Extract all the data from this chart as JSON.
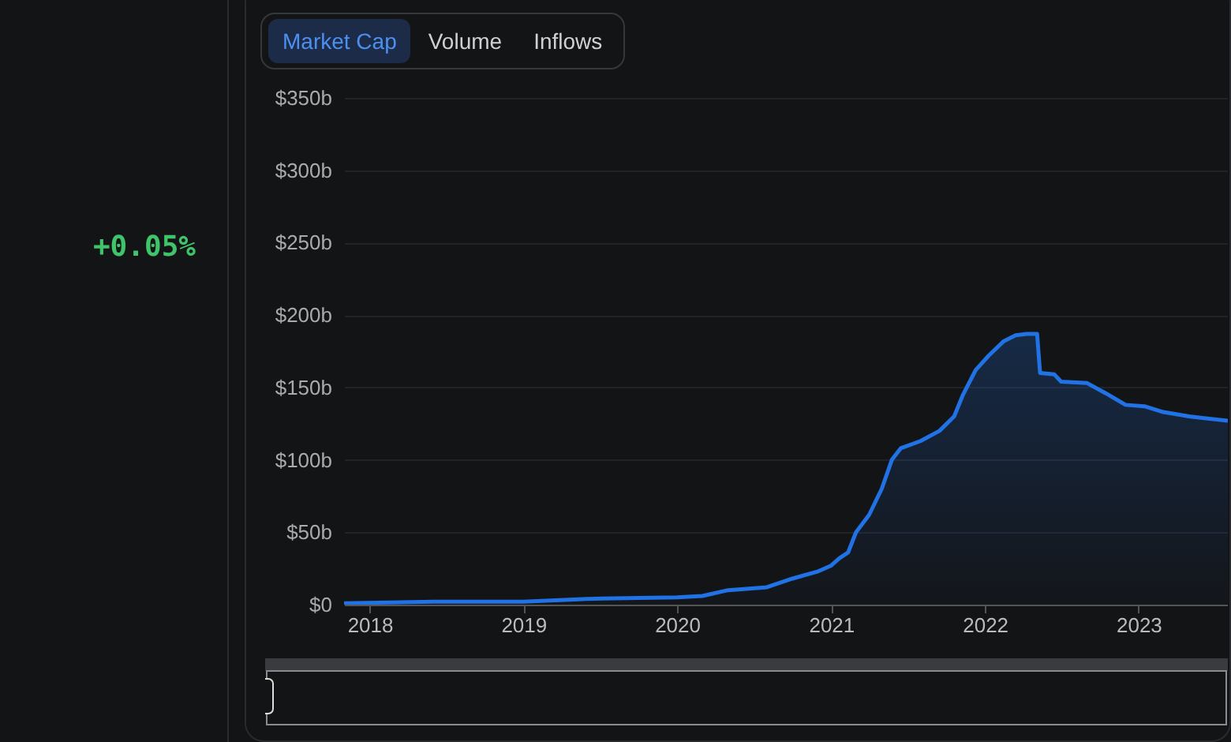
{
  "chart_data": {
    "type": "area",
    "annotations": [
      "+0.05%",
      "Market Cap",
      "Volume",
      "Inflows"
    ],
    "x": [
      "2017-11-01",
      "2018-06-01",
      "2019-01-01",
      "2019-06-01",
      "2020-01-01",
      "2020-03-01",
      "2020-05-01",
      "2020-08-01",
      "2020-10-01",
      "2020-12-01",
      "2021-01-01",
      "2021-01-20",
      "2021-02-10",
      "2021-03-01",
      "2021-04-01",
      "2021-05-01",
      "2021-05-25",
      "2021-06-15",
      "2021-08-01",
      "2021-09-15",
      "2021-10-20",
      "2021-11-10",
      "2021-12-10",
      "2022-01-10",
      "2022-02-15",
      "2022-03-15",
      "2022-04-10",
      "2022-05-05",
      "2022-05-12",
      "2022-06-15",
      "2022-07-01",
      "2022-09-01",
      "2022-10-15",
      "2022-12-01",
      "2023-01-15",
      "2023-03-01",
      "2023-05-01",
      "2023-08-01"
    ],
    "series": [
      {
        "color": "#2172e5",
        "values": [
          1,
          2,
          2,
          4,
          5,
          6,
          10,
          12,
          18,
          23,
          27,
          32,
          36,
          50,
          62,
          80,
          100,
          108,
          113,
          120,
          130,
          145,
          162,
          172,
          182,
          186,
          187,
          187,
          160,
          159,
          154,
          153,
          146,
          138,
          137,
          133,
          130,
          127
        ]
      }
    ],
    "xlim": [
      "2017-11-01",
      "2023-08-01"
    ],
    "xticks": [
      "2018",
      "2019",
      "2020",
      "2021",
      "2022",
      "2023"
    ],
    "ylim": [
      0,
      350
    ],
    "yticks": [
      {
        "value": 0,
        "label": "$0"
      },
      {
        "value": 50,
        "label": "$50b"
      },
      {
        "value": 100,
        "label": "$100b"
      },
      {
        "value": 150,
        "label": "$150b"
      },
      {
        "value": 200,
        "label": "$200b"
      },
      {
        "value": 250,
        "label": "$250b"
      },
      {
        "value": 300,
        "label": "$300b"
      },
      {
        "value": 350,
        "label": "$350b"
      }
    ],
    "grid": "y"
  }
}
